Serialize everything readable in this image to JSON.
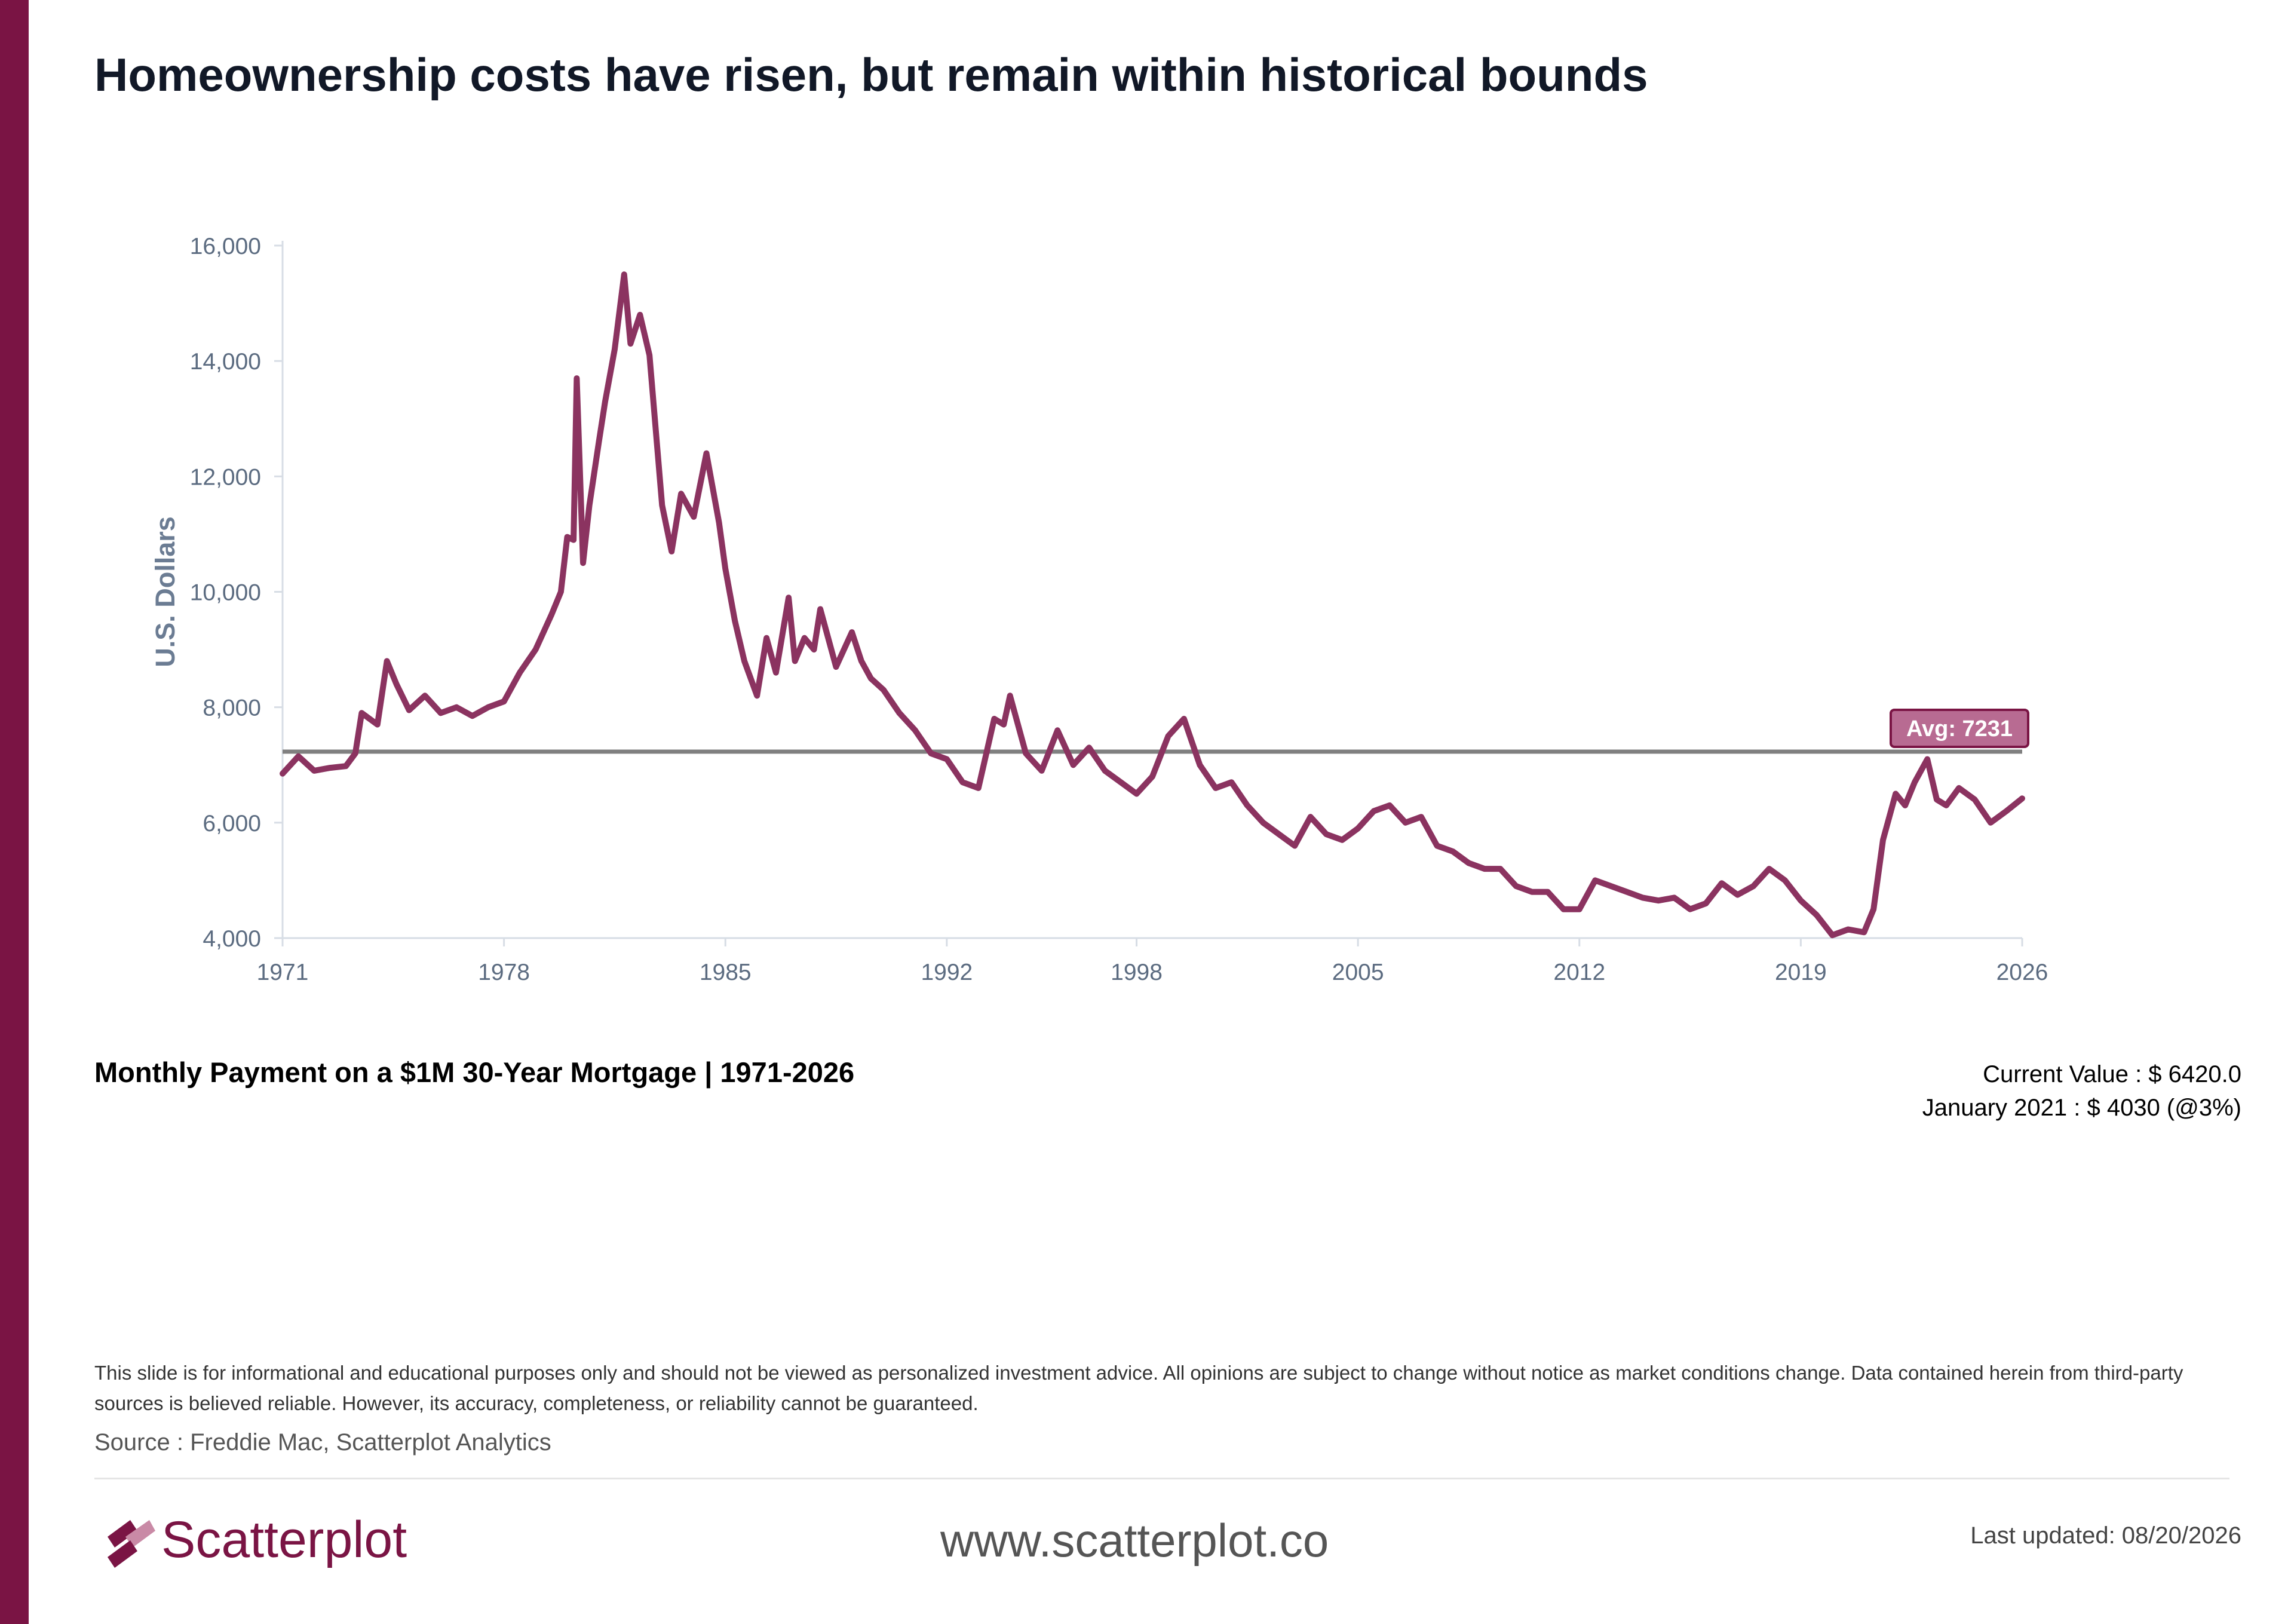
{
  "title": "Homeownership costs have risen, but remain within historical bounds",
  "subtitle": "Monthly Payment on a $1M 30-Year Mortgage | 1971-2026",
  "stats": {
    "current_value": "Current Value : $ 6420.0",
    "january_2021": "January 2021 : $ 4030 (@3%)"
  },
  "disclaimer": "This slide is for informational and educational purposes only and should not be viewed as personalized investment advice. All opinions are subject to change without notice as market conditions change. Data contained herein from third-party sources is believed reliable. However, its accuracy, completeness, or reliability cannot be guaranteed.",
  "source": "Source : Freddie Mac, Scatterplot Analytics",
  "footer": {
    "brand": "Scatterplot",
    "website": "www.scatterplot.co",
    "last_updated": "Last updated: 08/20/2026"
  },
  "colors": {
    "line": "#8b3360",
    "accent": "#7a1444",
    "avg_line": "#808080",
    "avg_label_bg": "#b86b92"
  },
  "chart_data": {
    "type": "line",
    "ylabel": "U.S. Dollars",
    "xlabel": "",
    "xlim": [
      1971,
      2026
    ],
    "ylim": [
      4000,
      16000
    ],
    "x_ticks": [
      "1971",
      "1978",
      "1985",
      "1992",
      "1998",
      "2005",
      "2012",
      "2019",
      "2026"
    ],
    "y_ticks": [
      "16,000",
      "14,000",
      "12,000",
      "10,000",
      "8,000",
      "6,000",
      "4,000"
    ],
    "average": {
      "value": 7231,
      "label": "Avg: 7231"
    },
    "series": [
      {
        "x": [
          1971,
          1971.5,
          1972,
          1972.5,
          1973,
          1973.3,
          1973.5,
          1974,
          1974.3,
          1974.6,
          1975,
          1975.5,
          1976,
          1976.5,
          1977,
          1977.5,
          1978,
          1978.5,
          1979,
          1979.5,
          1979.8,
          1980,
          1980.2,
          1980.3,
          1980.5,
          1980.7,
          1981,
          1981.2,
          1981.5,
          1981.8,
          1982,
          1982.3,
          1982.6,
          1983,
          1983.3,
          1983.6,
          1984,
          1984.4,
          1984.8,
          1985,
          1985.3,
          1985.6,
          1986,
          1986.3,
          1986.6,
          1987,
          1987.2,
          1987.5,
          1987.8,
          1988,
          1988.5,
          1989,
          1989.3,
          1989.6,
          1990,
          1990.5,
          1991,
          1991.5,
          1992,
          1992.5,
          1993,
          1993.5,
          1993.8,
          1994,
          1994.5,
          1995,
          1995.5,
          1996,
          1996.5,
          1997,
          1997.5,
          1998,
          1998.5,
          1999,
          1999.5,
          2000,
          2000.5,
          2001,
          2001.5,
          2002,
          2002.5,
          2003,
          2003.5,
          2004,
          2004.5,
          2005,
          2005.5,
          2006,
          2006.5,
          2007,
          2007.5,
          2008,
          2008.5,
          2009,
          2009.5,
          2010,
          2010.5,
          2011,
          2011.5,
          2012,
          2012.5,
          2013,
          2013.5,
          2014,
          2014.5,
          2015,
          2015.5,
          2016,
          2016.5,
          2017,
          2017.5,
          2018,
          2018.5,
          2019,
          2019.5,
          2020,
          2020.5,
          2021,
          2021.3,
          2021.6,
          2022,
          2022.3,
          2022.6,
          2023,
          2023.3,
          2023.6,
          2024,
          2024.5,
          2025,
          2025.5,
          2026
        ],
        "y": [
          6850,
          7150,
          6900,
          6950,
          6980,
          7200,
          7900,
          7700,
          8800,
          8400,
          7950,
          8200,
          7900,
          8000,
          7850,
          8000,
          8100,
          8600,
          9000,
          9600,
          10000,
          10950,
          10900,
          13700,
          10500,
          11500,
          12600,
          13300,
          14200,
          15500,
          14300,
          14800,
          14100,
          11500,
          10700,
          11700,
          11300,
          12400,
          11200,
          10400,
          9500,
          8800,
          8200,
          9200,
          8600,
          9900,
          8800,
          9200,
          9000,
          9700,
          8700,
          9300,
          8800,
          8500,
          8300,
          7900,
          7600,
          7200,
          7100,
          6700,
          6600,
          7800,
          7700,
          8200,
          7200,
          6900,
          7600,
          7000,
          7300,
          6900,
          6700,
          6500,
          6800,
          7500,
          7800,
          7000,
          6600,
          6700,
          6300,
          6000,
          5800,
          5600,
          6100,
          5800,
          5700,
          5900,
          6200,
          6300,
          6000,
          6100,
          5600,
          5500,
          5300,
          5200,
          5200,
          4900,
          4800,
          4800,
          4500,
          4500,
          5000,
          4900,
          4800,
          4700,
          4650,
          4700,
          4500,
          4600,
          4950,
          4750,
          4900,
          5200,
          5000,
          4650,
          4400,
          4050,
          4150,
          4100,
          4500,
          5700,
          6500,
          6300,
          6700,
          7100,
          6400,
          6300,
          6600,
          6400,
          6000,
          6200,
          6420
        ]
      }
    ]
  }
}
